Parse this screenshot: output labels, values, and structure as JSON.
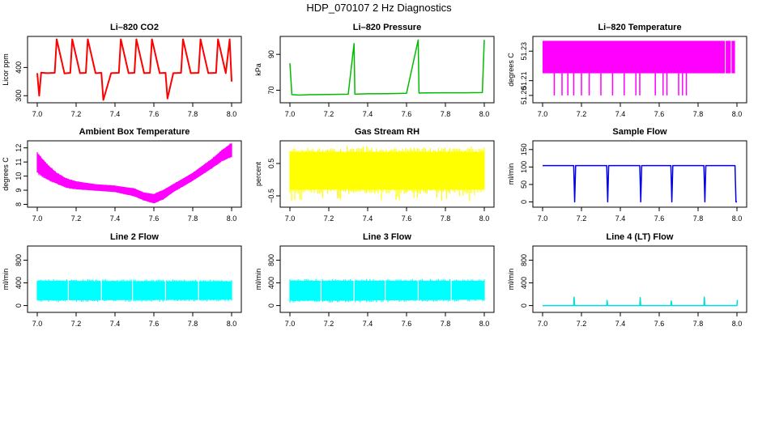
{
  "figure_title": "HDP_070107  2 Hz Diagnostics",
  "chart_data": [
    {
      "type": "line",
      "title": "Li–820 CO2",
      "xlabel": "",
      "ylabel": "Licor ppm",
      "color": "#ff0000",
      "xlim": [
        6.95,
        8.05
      ],
      "ylim": [
        275,
        510
      ],
      "xticks": [
        7.0,
        7.2,
        7.4,
        7.6,
        7.8,
        8.0
      ],
      "xtick_labels": [
        "7.0",
        "7.2",
        "7.4",
        "7.6",
        "7.8",
        "8.0"
      ],
      "yticks": [
        300,
        400
      ],
      "ytick_labels": [
        "300",
        "400"
      ],
      "x": [
        7.0,
        7.01,
        7.02,
        7.05,
        7.09,
        7.1,
        7.14,
        7.17,
        7.18,
        7.22,
        7.25,
        7.26,
        7.3,
        7.33,
        7.34,
        7.38,
        7.42,
        7.43,
        7.47,
        7.5,
        7.51,
        7.55,
        7.58,
        7.59,
        7.63,
        7.66,
        7.67,
        7.7,
        7.74,
        7.75,
        7.79,
        7.83,
        7.84,
        7.88,
        7.92,
        7.93,
        7.97,
        7.99,
        8.0
      ],
      "values": [
        380,
        300,
        382,
        380,
        381,
        500,
        379,
        381,
        500,
        380,
        381,
        500,
        380,
        381,
        285,
        380,
        381,
        500,
        380,
        381,
        500,
        380,
        381,
        500,
        380,
        381,
        290,
        380,
        381,
        500,
        380,
        381,
        500,
        380,
        381,
        500,
        380,
        500,
        350
      ]
    },
    {
      "type": "line",
      "title": "Li–820 Pressure",
      "xlabel": "",
      "ylabel": "kPa",
      "color": "#00bb00",
      "xlim": [
        6.95,
        8.05
      ],
      "ylim": [
        63,
        100
      ],
      "xticks": [
        7.0,
        7.2,
        7.4,
        7.6,
        7.8,
        8.0
      ],
      "xtick_labels": [
        "7.0",
        "7.2",
        "7.4",
        "7.6",
        "7.8",
        "8.0"
      ],
      "yticks": [
        70,
        90
      ],
      "ytick_labels": [
        "70",
        "90"
      ],
      "x": [
        7.0,
        7.01,
        7.05,
        7.1,
        7.2,
        7.3,
        7.33,
        7.334,
        7.4,
        7.5,
        7.6,
        7.66,
        7.664,
        7.7,
        7.8,
        7.9,
        7.99,
        8.0
      ],
      "values": [
        85,
        67.5,
        67.3,
        67.5,
        67.6,
        67.8,
        96,
        67.8,
        68,
        68.1,
        68.3,
        98,
        68.4,
        68.5,
        68.6,
        68.6,
        68.7,
        98
      ]
    },
    {
      "type": "line",
      "title": "Li–820 Temperature",
      "xlabel": "",
      "ylabel": "degrees C",
      "color": "#ff00ff",
      "xlim": [
        6.95,
        8.05
      ],
      "ylim": [
        51.195,
        51.24
      ],
      "xticks": [
        7.0,
        7.2,
        7.4,
        7.6,
        7.8,
        8.0
      ],
      "xtick_labels": [
        "7.0",
        "7.2",
        "7.4",
        "7.6",
        "7.8",
        "8.0"
      ],
      "yticks": [
        51.2,
        51.21,
        51.23
      ],
      "ytick_labels": [
        "51.20",
        "51.21",
        "51.23"
      ],
      "bands": [
        {
          "x0": 7.0,
          "x1": 7.99,
          "y0": 51.215,
          "y1": 51.237
        }
      ],
      "spikes_down": [
        7.06,
        7.1,
        7.13,
        7.16,
        7.2,
        7.24,
        7.3,
        7.36,
        7.42,
        7.48,
        7.5,
        7.58,
        7.62,
        7.64,
        7.7,
        7.72,
        7.74
      ],
      "spike_low": 51.2,
      "gaps": [
        7.94,
        7.97
      ]
    },
    {
      "type": "area",
      "title": "Ambient Box Temperature",
      "xlabel": "",
      "ylabel": "degrees C",
      "color": "#ff00ff",
      "xlim": [
        6.95,
        8.05
      ],
      "ylim": [
        7.8,
        12.5
      ],
      "xticks": [
        7.0,
        7.2,
        7.4,
        7.6,
        7.8,
        8.0
      ],
      "xtick_labels": [
        "7.0",
        "7.2",
        "7.4",
        "7.6",
        "7.8",
        "8.0"
      ],
      "yticks": [
        8,
        9,
        10,
        11,
        12
      ],
      "ytick_labels": [
        "8",
        "9",
        "10",
        "11",
        "12"
      ],
      "x": [
        7.0,
        7.05,
        7.1,
        7.15,
        7.2,
        7.3,
        7.4,
        7.5,
        7.55,
        7.6,
        7.65,
        7.7,
        7.8,
        7.9,
        7.95,
        8.0
      ],
      "upper": [
        11.6,
        10.8,
        10.2,
        9.8,
        9.6,
        9.4,
        9.3,
        9.1,
        8.8,
        8.7,
        9.0,
        9.4,
        10.2,
        11.2,
        11.8,
        12.3
      ],
      "lower": [
        10.3,
        9.8,
        9.5,
        9.2,
        9.1,
        9.0,
        8.9,
        8.6,
        8.3,
        8.1,
        8.4,
        8.9,
        9.7,
        10.6,
        11.1,
        11.4
      ]
    },
    {
      "type": "area",
      "title": "Gas Stream RH",
      "xlabel": "",
      "ylabel": "percent",
      "color": "#ffff00",
      "xlim": [
        6.95,
        8.05
      ],
      "ylim": [
        -0.85,
        1.2
      ],
      "xticks": [
        7.0,
        7.2,
        7.4,
        7.6,
        7.8,
        8.0
      ],
      "xtick_labels": [
        "7.0",
        "7.2",
        "7.4",
        "7.6",
        "7.8",
        "8.0"
      ],
      "yticks": [
        -0.5,
        0.5
      ],
      "ytick_labels": [
        "−0.5",
        "0.5"
      ],
      "x": [
        7.0,
        8.0
      ],
      "upper": [
        0.85,
        0.85
      ],
      "lower": [
        -0.3,
        -0.3
      ],
      "spike_max": 1.05,
      "spike_min": -0.7
    },
    {
      "type": "line",
      "title": "Sample Flow",
      "xlabel": "",
      "ylabel": "ml/min",
      "color": "#0000ee",
      "xlim": [
        6.95,
        8.05
      ],
      "ylim": [
        -15,
        175
      ],
      "xticks": [
        7.0,
        7.2,
        7.4,
        7.6,
        7.8,
        8.0
      ],
      "xtick_labels": [
        "7.0",
        "7.2",
        "7.4",
        "7.6",
        "7.8",
        "8.0"
      ],
      "yticks": [
        0,
        50,
        100,
        150
      ],
      "ytick_labels": [
        "0",
        "50",
        "100",
        "150"
      ],
      "x": [
        7.0,
        7.16,
        7.165,
        7.17,
        7.33,
        7.335,
        7.34,
        7.5,
        7.505,
        7.51,
        7.66,
        7.665,
        7.67,
        7.83,
        7.835,
        7.84,
        7.99,
        7.995,
        8.0
      ],
      "values": [
        104,
        104,
        0,
        104,
        104,
        0,
        104,
        104,
        0,
        104,
        104,
        0,
        104,
        104,
        0,
        104,
        104,
        0,
        0
      ]
    },
    {
      "type": "area",
      "title": "Line 2 Flow",
      "xlabel": "",
      "ylabel": "ml/min",
      "color": "#00ffff",
      "xlim": [
        6.95,
        8.05
      ],
      "ylim": [
        -120,
        1050
      ],
      "xticks": [
        7.0,
        7.2,
        7.4,
        7.6,
        7.8,
        8.0
      ],
      "xtick_labels": [
        "7.0",
        "7.2",
        "7.4",
        "7.6",
        "7.8",
        "8.0"
      ],
      "yticks": [
        0,
        400,
        800
      ],
      "ytick_labels": [
        "0",
        "400",
        "800"
      ],
      "x": [
        7.0,
        8.0
      ],
      "upper": [
        430,
        420
      ],
      "lower": [
        100,
        110
      ],
      "gaps": [
        7.16,
        7.33,
        7.49,
        7.66,
        7.83
      ]
    },
    {
      "type": "area",
      "title": "Line 3 Flow",
      "xlabel": "",
      "ylabel": "ml/min",
      "color": "#00ffff",
      "xlim": [
        6.95,
        8.05
      ],
      "ylim": [
        -120,
        1050
      ],
      "xticks": [
        7.0,
        7.2,
        7.4,
        7.6,
        7.8,
        8.0
      ],
      "xtick_labels": [
        "7.0",
        "7.2",
        "7.4",
        "7.6",
        "7.8",
        "8.0"
      ],
      "yticks": [
        0,
        400,
        800
      ],
      "ytick_labels": [
        "0",
        "400",
        "800"
      ],
      "x": [
        7.0,
        8.0
      ],
      "upper": [
        430,
        430
      ],
      "lower": [
        90,
        110
      ],
      "gaps": [
        7.16,
        7.33,
        7.49,
        7.66,
        7.83
      ]
    },
    {
      "type": "line",
      "title": "Line 4 (LT) Flow",
      "xlabel": "",
      "ylabel": "ml/min",
      "color": "#00dddd",
      "xlim": [
        6.95,
        8.05
      ],
      "ylim": [
        -120,
        1050
      ],
      "xticks": [
        7.0,
        7.2,
        7.4,
        7.6,
        7.8,
        8.0
      ],
      "xtick_labels": [
        "7.0",
        "7.2",
        "7.4",
        "7.6",
        "7.8",
        "8.0"
      ],
      "yticks": [
        0,
        400,
        800
      ],
      "ytick_labels": [
        "0",
        "400",
        "800"
      ],
      "x": [
        7.0,
        7.16,
        7.162,
        7.165,
        7.33,
        7.332,
        7.335,
        7.5,
        7.502,
        7.505,
        7.66,
        7.662,
        7.665,
        7.83,
        7.832,
        7.835,
        8.0,
        8.002
      ],
      "values": [
        0,
        0,
        150,
        0,
        0,
        90,
        0,
        0,
        140,
        0,
        0,
        80,
        0,
        0,
        150,
        0,
        0,
        100
      ]
    }
  ]
}
